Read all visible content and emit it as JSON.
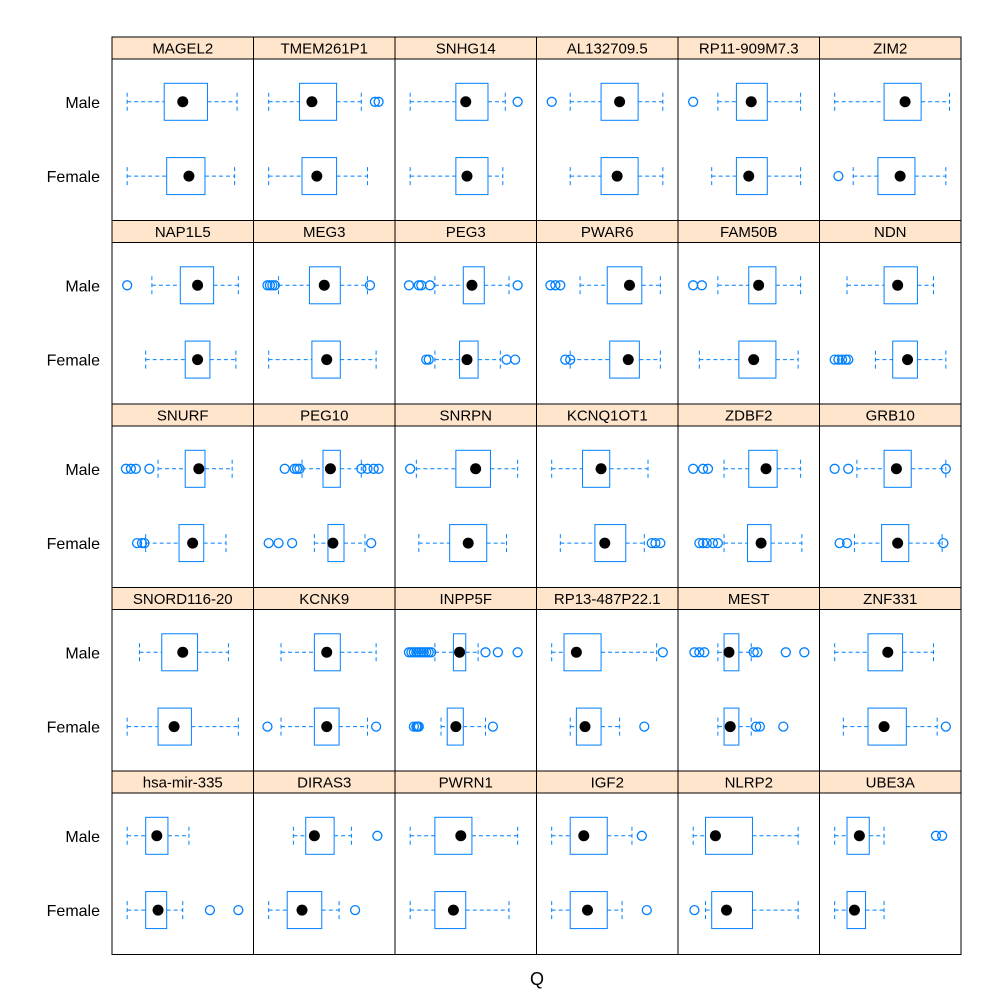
{
  "chart_data": {
    "type": "boxplot",
    "xlabel": "Q",
    "groups": [
      "Male",
      "Female"
    ],
    "layout": {
      "columns": 6,
      "rows": 5
    },
    "x_range": [
      0,
      1
    ],
    "colors": {
      "box": "#0080ff",
      "median": "#000000",
      "strip": "#ffe5cc",
      "frame": "#000000",
      "background": "#ffffff"
    },
    "panels": [
      {
        "title": "MAGEL2",
        "Male": {
          "wl": 0.05,
          "q1": 0.35,
          "med": 0.5,
          "q3": 0.7,
          "wh": 0.94,
          "out": []
        },
        "Female": {
          "wl": 0.05,
          "q1": 0.37,
          "med": 0.55,
          "q3": 0.68,
          "wh": 0.92,
          "out": []
        }
      },
      {
        "title": "TMEM261P1",
        "Male": {
          "wl": 0.05,
          "q1": 0.3,
          "med": 0.4,
          "q3": 0.6,
          "wh": 0.8,
          "out": [
            0.91,
            0.94
          ]
        },
        "Female": {
          "wl": 0.05,
          "q1": 0.32,
          "med": 0.44,
          "q3": 0.6,
          "wh": 0.85,
          "out": []
        }
      },
      {
        "title": "SNHG14",
        "Male": {
          "wl": 0.05,
          "q1": 0.42,
          "med": 0.5,
          "q3": 0.68,
          "wh": 0.82,
          "out": [
            0.92
          ]
        },
        "Female": {
          "wl": 0.05,
          "q1": 0.42,
          "med": 0.51,
          "q3": 0.68,
          "wh": 0.8,
          "out": []
        }
      },
      {
        "title": "AL132709.5",
        "Male": {
          "wl": 0.2,
          "q1": 0.45,
          "med": 0.6,
          "q3": 0.75,
          "wh": 0.95,
          "out": [
            0.05
          ]
        },
        "Female": {
          "wl": 0.2,
          "q1": 0.45,
          "med": 0.58,
          "q3": 0.75,
          "wh": 0.95,
          "out": []
        }
      },
      {
        "title": "RP11-909M7.3",
        "Male": {
          "wl": 0.25,
          "q1": 0.4,
          "med": 0.52,
          "q3": 0.65,
          "wh": 0.92,
          "out": [
            0.05
          ]
        },
        "Female": {
          "wl": 0.2,
          "q1": 0.4,
          "med": 0.5,
          "q3": 0.65,
          "wh": 0.92,
          "out": []
        }
      },
      {
        "title": "ZIM2",
        "Male": {
          "wl": 0.05,
          "q1": 0.45,
          "med": 0.62,
          "q3": 0.75,
          "wh": 0.98,
          "out": []
        },
        "Female": {
          "wl": 0.2,
          "q1": 0.4,
          "med": 0.58,
          "q3": 0.7,
          "wh": 0.95,
          "out": [
            0.08
          ]
        }
      },
      {
        "title": "NAP1L5",
        "Male": {
          "wl": 0.25,
          "q1": 0.48,
          "med": 0.62,
          "q3": 0.75,
          "wh": 0.95,
          "out": [
            0.05
          ]
        },
        "Female": {
          "wl": 0.2,
          "q1": 0.52,
          "med": 0.62,
          "q3": 0.72,
          "wh": 0.93,
          "out": []
        }
      },
      {
        "title": "MEG3",
        "Male": {
          "wl": 0.13,
          "q1": 0.38,
          "med": 0.5,
          "q3": 0.63,
          "wh": 0.85,
          "out": [
            0.04,
            0.06,
            0.08,
            0.1,
            0.87
          ]
        },
        "Female": {
          "wl": 0.05,
          "q1": 0.4,
          "med": 0.52,
          "q3": 0.63,
          "wh": 0.92,
          "out": []
        }
      },
      {
        "title": "PEG3",
        "Male": {
          "wl": 0.25,
          "q1": 0.48,
          "med": 0.55,
          "q3": 0.65,
          "wh": 0.85,
          "out": [
            0.04,
            0.12,
            0.14,
            0.21,
            0.92
          ]
        },
        "Female": {
          "wl": 0.25,
          "q1": 0.45,
          "med": 0.51,
          "q3": 0.6,
          "wh": 0.78,
          "out": [
            0.18,
            0.2,
            0.83,
            0.9
          ]
        }
      },
      {
        "title": "PWAR6",
        "Male": {
          "wl": 0.28,
          "q1": 0.5,
          "med": 0.68,
          "q3": 0.78,
          "wh": 0.93,
          "out": [
            0.04,
            0.08,
            0.12
          ]
        },
        "Female": {
          "wl": 0.2,
          "q1": 0.52,
          "med": 0.67,
          "q3": 0.76,
          "wh": 0.93,
          "out": [
            0.16,
            0.2
          ]
        }
      },
      {
        "title": "FAM50B",
        "Male": {
          "wl": 0.25,
          "q1": 0.5,
          "med": 0.58,
          "q3": 0.72,
          "wh": 0.92,
          "out": [
            0.05,
            0.12
          ]
        },
        "Female": {
          "wl": 0.1,
          "q1": 0.42,
          "med": 0.54,
          "q3": 0.72,
          "wh": 0.9,
          "out": []
        }
      },
      {
        "title": "NDN",
        "Male": {
          "wl": 0.15,
          "q1": 0.45,
          "med": 0.56,
          "q3": 0.72,
          "wh": 0.85,
          "out": []
        },
        "Female": {
          "wl": 0.38,
          "q1": 0.52,
          "med": 0.64,
          "q3": 0.72,
          "wh": 0.95,
          "out": [
            0.05,
            0.08,
            0.11,
            0.14,
            0.16
          ]
        }
      },
      {
        "title": "SNURF",
        "Male": {
          "wl": 0.3,
          "q1": 0.52,
          "med": 0.63,
          "q3": 0.68,
          "wh": 0.9,
          "out": [
            0.04,
            0.08,
            0.12,
            0.23
          ]
        },
        "Female": {
          "wl": 0.2,
          "q1": 0.47,
          "med": 0.58,
          "q3": 0.67,
          "wh": 0.85,
          "out": [
            0.13,
            0.17,
            0.19
          ]
        }
      },
      {
        "title": "PEG10",
        "Male": {
          "wl": 0.32,
          "q1": 0.49,
          "med": 0.55,
          "q3": 0.63,
          "wh": 0.8,
          "out": [
            0.18,
            0.26,
            0.28,
            0.3,
            0.8,
            0.85,
            0.9,
            0.94
          ]
        },
        "Female": {
          "wl": 0.42,
          "q1": 0.53,
          "med": 0.57,
          "q3": 0.66,
          "wh": 0.83,
          "out": [
            0.05,
            0.13,
            0.24,
            0.88
          ]
        }
      },
      {
        "title": "SNRPN",
        "Male": {
          "wl": 0.1,
          "q1": 0.42,
          "med": 0.58,
          "q3": 0.7,
          "wh": 0.92,
          "out": [
            0.05
          ]
        },
        "Female": {
          "wl": 0.12,
          "q1": 0.37,
          "med": 0.52,
          "q3": 0.67,
          "wh": 0.83,
          "out": []
        }
      },
      {
        "title": "KCNQ1OT1",
        "Male": {
          "wl": 0.05,
          "q1": 0.3,
          "med": 0.45,
          "q3": 0.52,
          "wh": 0.83,
          "out": []
        },
        "Female": {
          "wl": 0.12,
          "q1": 0.4,
          "med": 0.48,
          "q3": 0.65,
          "wh": 0.8,
          "out": [
            0.86,
            0.89,
            0.93
          ]
        }
      },
      {
        "title": "ZDBF2",
        "Male": {
          "wl": 0.3,
          "q1": 0.5,
          "med": 0.64,
          "q3": 0.73,
          "wh": 0.92,
          "out": [
            0.05,
            0.13,
            0.17
          ]
        },
        "Female": {
          "wl": 0.3,
          "q1": 0.49,
          "med": 0.6,
          "q3": 0.68,
          "wh": 0.93,
          "out": [
            0.1,
            0.13,
            0.16,
            0.21,
            0.25
          ]
        }
      },
      {
        "title": "GRB10",
        "Male": {
          "wl": 0.23,
          "q1": 0.45,
          "med": 0.55,
          "q3": 0.67,
          "wh": 0.95,
          "out": [
            0.05,
            0.16,
            0.95
          ]
        },
        "Female": {
          "wl": 0.21,
          "q1": 0.43,
          "med": 0.56,
          "q3": 0.65,
          "wh": 0.92,
          "out": [
            0.09,
            0.15,
            0.93
          ]
        }
      },
      {
        "title": "SNORD116-20",
        "Male": {
          "wl": 0.15,
          "q1": 0.33,
          "med": 0.5,
          "q3": 0.62,
          "wh": 0.87,
          "out": []
        },
        "Female": {
          "wl": 0.05,
          "q1": 0.3,
          "med": 0.43,
          "q3": 0.57,
          "wh": 0.95,
          "out": []
        }
      },
      {
        "title": "KCNK9",
        "Male": {
          "wl": 0.15,
          "q1": 0.42,
          "med": 0.52,
          "q3": 0.63,
          "wh": 0.92,
          "out": []
        },
        "Female": {
          "wl": 0.15,
          "q1": 0.42,
          "med": 0.52,
          "q3": 0.62,
          "wh": 0.85,
          "out": [
            0.04,
            0.92
          ]
        }
      },
      {
        "title": "INPP5F",
        "Male": {
          "wl": 0.25,
          "q1": 0.4,
          "med": 0.45,
          "q3": 0.5,
          "wh": 0.6,
          "out": [
            0.04,
            0.06,
            0.08,
            0.1,
            0.12,
            0.14,
            0.16,
            0.18,
            0.2,
            0.22,
            0.66,
            0.76,
            0.92
          ]
        },
        "Female": {
          "wl": 0.3,
          "q1": 0.35,
          "med": 0.42,
          "q3": 0.48,
          "wh": 0.66,
          "out": [
            0.08,
            0.1,
            0.11,
            0.12,
            0.72
          ]
        }
      },
      {
        "title": "RP13-487P22.1",
        "Male": {
          "wl": 0.05,
          "q1": 0.15,
          "med": 0.25,
          "q3": 0.45,
          "wh": 0.9,
          "out": [
            0.95
          ]
        },
        "Female": {
          "wl": 0.2,
          "q1": 0.25,
          "med": 0.32,
          "q3": 0.45,
          "wh": 0.6,
          "out": [
            0.8
          ]
        }
      },
      {
        "title": "MEST",
        "Male": {
          "wl": 0.25,
          "q1": 0.3,
          "med": 0.34,
          "q3": 0.42,
          "wh": 0.52,
          "out": [
            0.06,
            0.1,
            0.14,
            0.54,
            0.57,
            0.8,
            0.95
          ]
        },
        "Female": {
          "wl": 0.25,
          "q1": 0.3,
          "med": 0.35,
          "q3": 0.42,
          "wh": 0.52,
          "out": [
            0.56,
            0.59,
            0.78
          ]
        }
      },
      {
        "title": "ZNF331",
        "Male": {
          "wl": 0.05,
          "q1": 0.32,
          "med": 0.48,
          "q3": 0.6,
          "wh": 0.85,
          "out": []
        },
        "Female": {
          "wl": 0.12,
          "q1": 0.32,
          "med": 0.45,
          "q3": 0.63,
          "wh": 0.88,
          "out": [
            0.95
          ]
        }
      },
      {
        "title": "hsa-mir-335",
        "Male": {
          "wl": 0.05,
          "q1": 0.2,
          "med": 0.29,
          "q3": 0.38,
          "wh": 0.55,
          "out": []
        },
        "Female": {
          "wl": 0.05,
          "q1": 0.2,
          "med": 0.3,
          "q3": 0.37,
          "wh": 0.5,
          "out": [
            0.72,
            0.95
          ]
        }
      },
      {
        "title": "DIRAS3",
        "Male": {
          "wl": 0.25,
          "q1": 0.35,
          "med": 0.42,
          "q3": 0.58,
          "wh": 0.72,
          "out": [
            0.93
          ]
        },
        "Female": {
          "wl": 0.05,
          "q1": 0.2,
          "med": 0.32,
          "q3": 0.48,
          "wh": 0.62,
          "out": [
            0.75
          ]
        }
      },
      {
        "title": "PWRN1",
        "Male": {
          "wl": 0.05,
          "q1": 0.25,
          "med": 0.46,
          "q3": 0.55,
          "wh": 0.92,
          "out": []
        },
        "Female": {
          "wl": 0.05,
          "q1": 0.25,
          "med": 0.4,
          "q3": 0.5,
          "wh": 0.85,
          "out": []
        }
      },
      {
        "title": "IGF2",
        "Male": {
          "wl": 0.05,
          "q1": 0.2,
          "med": 0.31,
          "q3": 0.5,
          "wh": 0.7,
          "out": [
            0.78
          ]
        },
        "Female": {
          "wl": 0.05,
          "q1": 0.2,
          "med": 0.34,
          "q3": 0.5,
          "wh": 0.62,
          "out": [
            0.82
          ]
        }
      },
      {
        "title": "NLRP2",
        "Male": {
          "wl": 0.05,
          "q1": 0.15,
          "med": 0.23,
          "q3": 0.53,
          "wh": 0.9,
          "out": []
        },
        "Female": {
          "wl": 0.15,
          "q1": 0.2,
          "med": 0.32,
          "q3": 0.53,
          "wh": 0.9,
          "out": [
            0.06
          ]
        }
      },
      {
        "title": "UBE3A",
        "Male": {
          "wl": 0.05,
          "q1": 0.15,
          "med": 0.25,
          "q3": 0.33,
          "wh": 0.45,
          "out": [
            0.87,
            0.92
          ]
        },
        "Female": {
          "wl": 0.05,
          "q1": 0.15,
          "med": 0.21,
          "q3": 0.3,
          "wh": 0.45,
          "out": []
        }
      }
    ]
  }
}
